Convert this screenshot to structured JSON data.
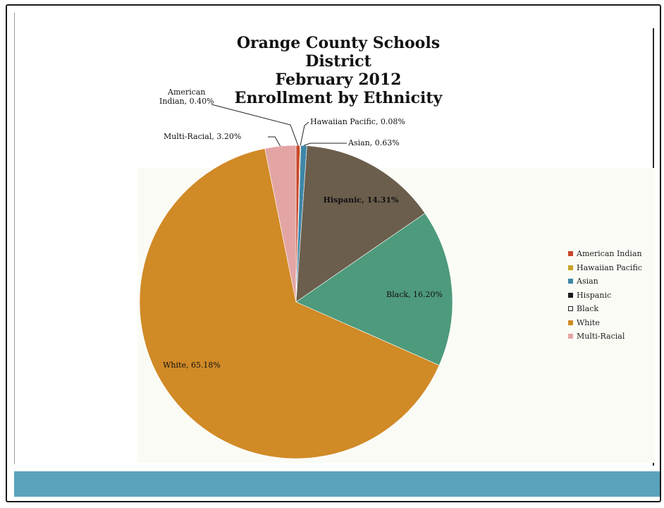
{
  "chart_data": {
    "type": "pie",
    "title": "Orange County Schools District February 2012 Enrollment by Ethnicity",
    "title_lines": [
      "Orange County Schools",
      "District",
      "February 2012",
      "Enrollment by Ethnicity"
    ],
    "legend_position": "right",
    "slices": [
      {
        "name": "American Indian",
        "value": 0.4,
        "label": "American Indian, 0.40%",
        "color": "#c8452a"
      },
      {
        "name": "Hawaiian Pacific",
        "value": 0.08,
        "label": "Hawaiian Pacific, 0.08%",
        "color": "#c9a227"
      },
      {
        "name": "Asian",
        "value": 0.63,
        "label": "Asian, 0.63%",
        "color": "#3e86a8"
      },
      {
        "name": "Hispanic",
        "value": 14.31,
        "label": "Hispanic, 14.31%",
        "color": "#6b5e4c"
      },
      {
        "name": "Black",
        "value": 16.2,
        "label": "Black, 16.20%",
        "color": "#4e9a7c"
      },
      {
        "name": "White",
        "value": 65.18,
        "label": "White, 65.18%",
        "color": "#d08a26"
      },
      {
        "name": "Multi-Racial",
        "value": 3.2,
        "label": "Multi-Racial, 3.20%",
        "color": "#e3a5a4"
      }
    ],
    "callouts": {
      "american_indian": [
        "American",
        "Indian, 0.40%"
      ],
      "hawaiian_pacific": "Hawaiian Pacific, 0.08%",
      "asian": "Asian, 0.63%",
      "multi_racial": "Multi-Racial, 3.20%"
    },
    "inside_labels": {
      "hispanic": "Hispanic, 14.31%",
      "black": "Black, 16.20%",
      "white": "White, 65.18%"
    },
    "legend": [
      {
        "label": "American Indian",
        "color": "#c8452a"
      },
      {
        "label": "Hawaiian Pacific",
        "color": "#c9a227"
      },
      {
        "label": "Asian",
        "color": "#3e86a8"
      },
      {
        "label": "Hispanic",
        "color": "#1a1a1a"
      },
      {
        "label": "Black",
        "color": "#ffffff"
      },
      {
        "label": "White",
        "color": "#d08a26"
      },
      {
        "label": "Multi-Racial",
        "color": "#e3a5a4"
      }
    ]
  },
  "colors": {
    "band": "#5aa3bd"
  }
}
